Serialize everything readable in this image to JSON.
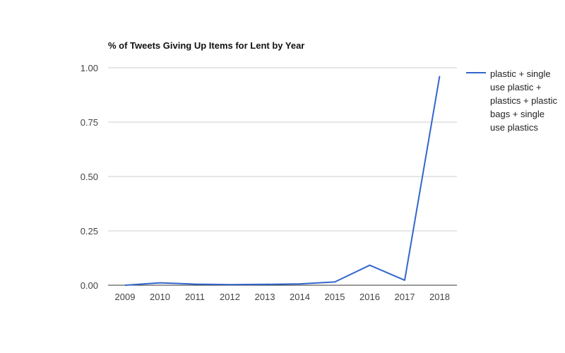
{
  "chart_data": {
    "type": "line",
    "title": "% of Tweets Giving Up Items for Lent by Year",
    "x": [
      "2009",
      "2010",
      "2011",
      "2012",
      "2013",
      "2014",
      "2015",
      "2016",
      "2017",
      "2018"
    ],
    "series": [
      {
        "name": "plastic + single use plastic + plastics + plastic bags + single use plastics",
        "values": [
          0.0,
          0.011,
          0.005,
          0.003,
          0.004,
          0.006,
          0.015,
          0.092,
          0.023,
          0.962
        ],
        "color": "#3366cc"
      }
    ],
    "ylim": [
      0,
      1
    ],
    "yticks": [
      "0.00",
      "0.25",
      "0.50",
      "0.75",
      "1.00"
    ],
    "yticks_values": [
      0,
      0.25,
      0.5,
      0.75,
      1.0
    ],
    "grid": true,
    "legend_position": "right",
    "colors": {
      "line": "#3366cc",
      "grid": "#cccccc",
      "axis": "#333333"
    }
  }
}
